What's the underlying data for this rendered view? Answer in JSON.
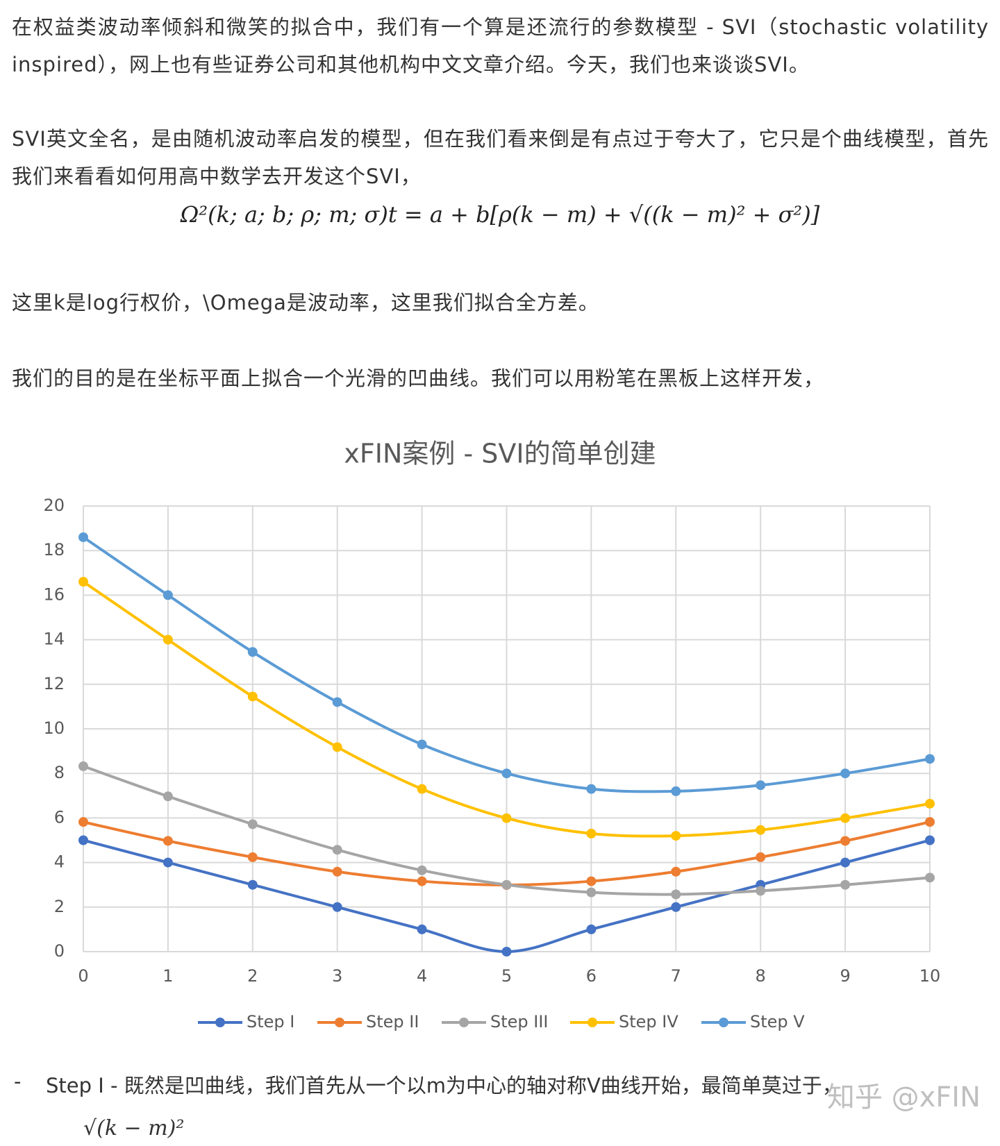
{
  "paragraphs": [
    "在权益类波动率倾斜和微笑的拟合中，我们有一个算是还流行的参数模型 - SVI（stochastic volatility inspired），网上也有些证券公司和其他机构中文文章介绍。今天，我们也来谈谈SVI。",
    "SVI英文全名，是由随机波动率启发的模型，但在我们看来倒是有点过于夸大了，它只是个曲线模型，首先我们来看看如何用高中数学去开发这个SVI，",
    "这里k是log行权价，\\Omega是波动率，这里我们拟合全方差。",
    "我们的目的是在坐标平面上拟合一个光滑的凹曲线。我们可以用粉笔在黑板上这样开发，"
  ],
  "formula": "Ω²(k; a; b; ρ; m; σ)t = a + b[ρ(k − m) + √((k − m)² + σ²)]",
  "chart_data": {
    "type": "line",
    "title": "xFIN案例 - SVI的简单创建",
    "x": [
      0,
      1,
      2,
      3,
      4,
      5,
      6,
      7,
      8,
      9,
      10
    ],
    "xlim": [
      0,
      10
    ],
    "xticks": [
      0,
      1,
      2,
      3,
      4,
      5,
      6,
      7,
      8,
      9,
      10
    ],
    "ylim": [
      0,
      20
    ],
    "yticks": [
      0,
      2,
      4,
      6,
      8,
      10,
      12,
      14,
      16,
      18,
      20
    ],
    "grid": true,
    "legend": "bottom",
    "series": [
      {
        "name": "Step I",
        "color": "#4472c4",
        "values": [
          5,
          4,
          3,
          2,
          1,
          0,
          1,
          2,
          3,
          4,
          5
        ]
      },
      {
        "name": "Step II",
        "color": "#ed7d31",
        "values": [
          5.82,
          4.97,
          4.24,
          3.59,
          3.16,
          2.99,
          3.16,
          3.59,
          4.24,
          4.97,
          5.82
        ]
      },
      {
        "name": "Step III",
        "color": "#a5a5a5",
        "values": [
          8.32,
          6.97,
          5.72,
          4.57,
          3.65,
          3.0,
          2.66,
          2.57,
          2.73,
          3.0,
          3.32
        ]
      },
      {
        "name": "Step IV",
        "color": "#ffc000",
        "values": [
          16.6,
          14,
          11.45,
          9.18,
          7.3,
          5.99,
          5.3,
          5.2,
          5.46,
          5.99,
          6.64
        ]
      },
      {
        "name": "Step V",
        "color": "#5b9bd5",
        "values": [
          18.6,
          16,
          13.45,
          11.2,
          9.3,
          8.0,
          7.3,
          7.2,
          7.47,
          8.0,
          8.65
        ]
      }
    ]
  },
  "bullet": {
    "marker": "-",
    "text": "Step I - 既然是凹曲线，我们首先从一个以m为中心的轴对称V曲线开始，最简单莫过于，",
    "formula": "√(k − m)²"
  },
  "watermark": "知乎 @xFIN"
}
